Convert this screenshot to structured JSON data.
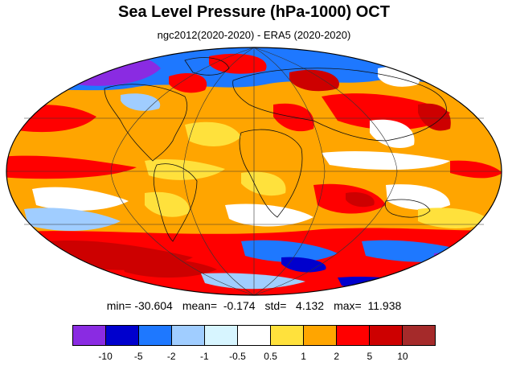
{
  "title": "Sea Level Pressure (hPa-1000) OCT",
  "subtitle": "ngc2012(2020-2020) - ERA5 (2020-2020)",
  "stats": {
    "min": "min= -30.604",
    "mean": "mean=  -0.174",
    "std": "std=   4.132",
    "max": "max=  11.938"
  },
  "colorbar": {
    "colors": [
      "#8a2be2",
      "#0000cd",
      "#1e78ff",
      "#a0cdff",
      "#d7f5ff",
      "#ffffff",
      "#ffe13c",
      "#ffa500",
      "#ff0000",
      "#cd0000",
      "#a52a2a"
    ],
    "tick_labels": [
      "-10",
      "-5",
      "-2",
      "-1",
      "-0.5",
      "0.5",
      "1",
      "2",
      "5",
      "10"
    ]
  }
}
